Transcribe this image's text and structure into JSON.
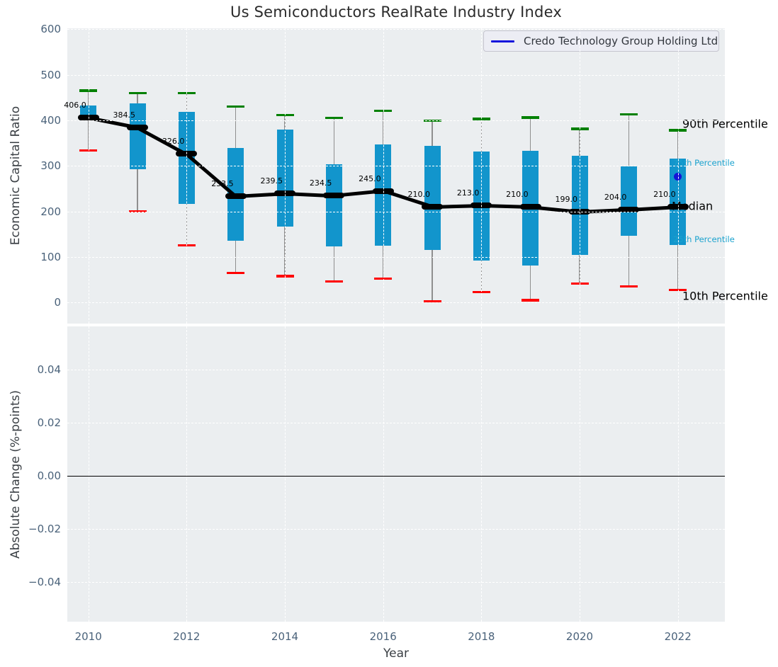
{
  "title": "Us Semiconductors RealRate Industry Index",
  "legend": {
    "label": "Credo Technology Group Holding Ltd"
  },
  "annotations": {
    "p90": "90th Percentile",
    "p75": "75th Percentile",
    "median": "Median",
    "p25": "25th Percentile",
    "p10": "10th Percentile"
  },
  "colors": {
    "plot_bg": "#ebeef0",
    "grid": "#ffffff",
    "box": "#1295cc",
    "whisker": "#8f8f8f",
    "p90_cap": "#008000",
    "p10_cap": "#ff0000",
    "median_line": "#000000",
    "company": "#1313d6",
    "tick_label": "#4a627a",
    "annotation_small": "#1aa2ce"
  },
  "chart_data": [
    {
      "type": "boxplot",
      "title": "Us Semiconductors RealRate Industry Index",
      "xlabel": "Year",
      "ylabel": "Economic Capital Ratio",
      "ylim": [
        0,
        600
      ],
      "yticks": [
        600,
        500,
        400,
        300,
        200,
        100,
        0
      ],
      "xticks": [
        2010,
        2012,
        2014,
        2016,
        2018,
        2020,
        2022
      ],
      "grid": true,
      "legend_position": "upper right",
      "years": [
        2010,
        2011,
        2012,
        2013,
        2014,
        2015,
        2016,
        2017,
        2018,
        2019,
        2020,
        2021,
        2022
      ],
      "p10": [
        334,
        200,
        126,
        65,
        58,
        46,
        52,
        3,
        23,
        5,
        42,
        36,
        28
      ],
      "p25": [
        400,
        292,
        216,
        136,
        166,
        123,
        125,
        115,
        92,
        82,
        105,
        146,
        126
      ],
      "median": [
        406.0,
        384.5,
        326.0,
        233.5,
        239.5,
        234.5,
        245.0,
        210.0,
        213.0,
        210.0,
        199.0,
        204.0,
        210.0
      ],
      "median_labels": [
        "406.0",
        "384.5",
        "326.0",
        "233.5",
        "239.5",
        "234.5",
        "245.0",
        "210.0",
        "213.0",
        "210.0",
        "199.0",
        "204.0",
        "210.0"
      ],
      "p75": [
        432,
        437,
        419,
        339,
        379,
        304,
        347,
        344,
        332,
        333,
        322,
        299,
        316
      ],
      "p90": [
        465,
        459,
        459,
        430,
        411,
        405,
        421,
        399,
        403,
        406,
        381,
        413,
        378
      ],
      "company_series": {
        "name": "Credo Technology Group Holding Ltd",
        "points": [
          {
            "x": 2022,
            "y": 277
          }
        ]
      }
    },
    {
      "type": "line",
      "xlabel": "Year",
      "ylabel": "Absolute Change (%-points)",
      "ylim": [
        -0.055,
        0.056
      ],
      "yticks": [
        0.04,
        0.02,
        0.0,
        -0.02,
        -0.04
      ],
      "ytick_labels": [
        "0.04",
        "0.02",
        "0.00",
        "−0.02",
        "−0.04"
      ],
      "xticks": [
        2010,
        2012,
        2014,
        2016,
        2018,
        2020,
        2022
      ],
      "grid": true,
      "zero_line": 0.0,
      "series": []
    }
  ]
}
